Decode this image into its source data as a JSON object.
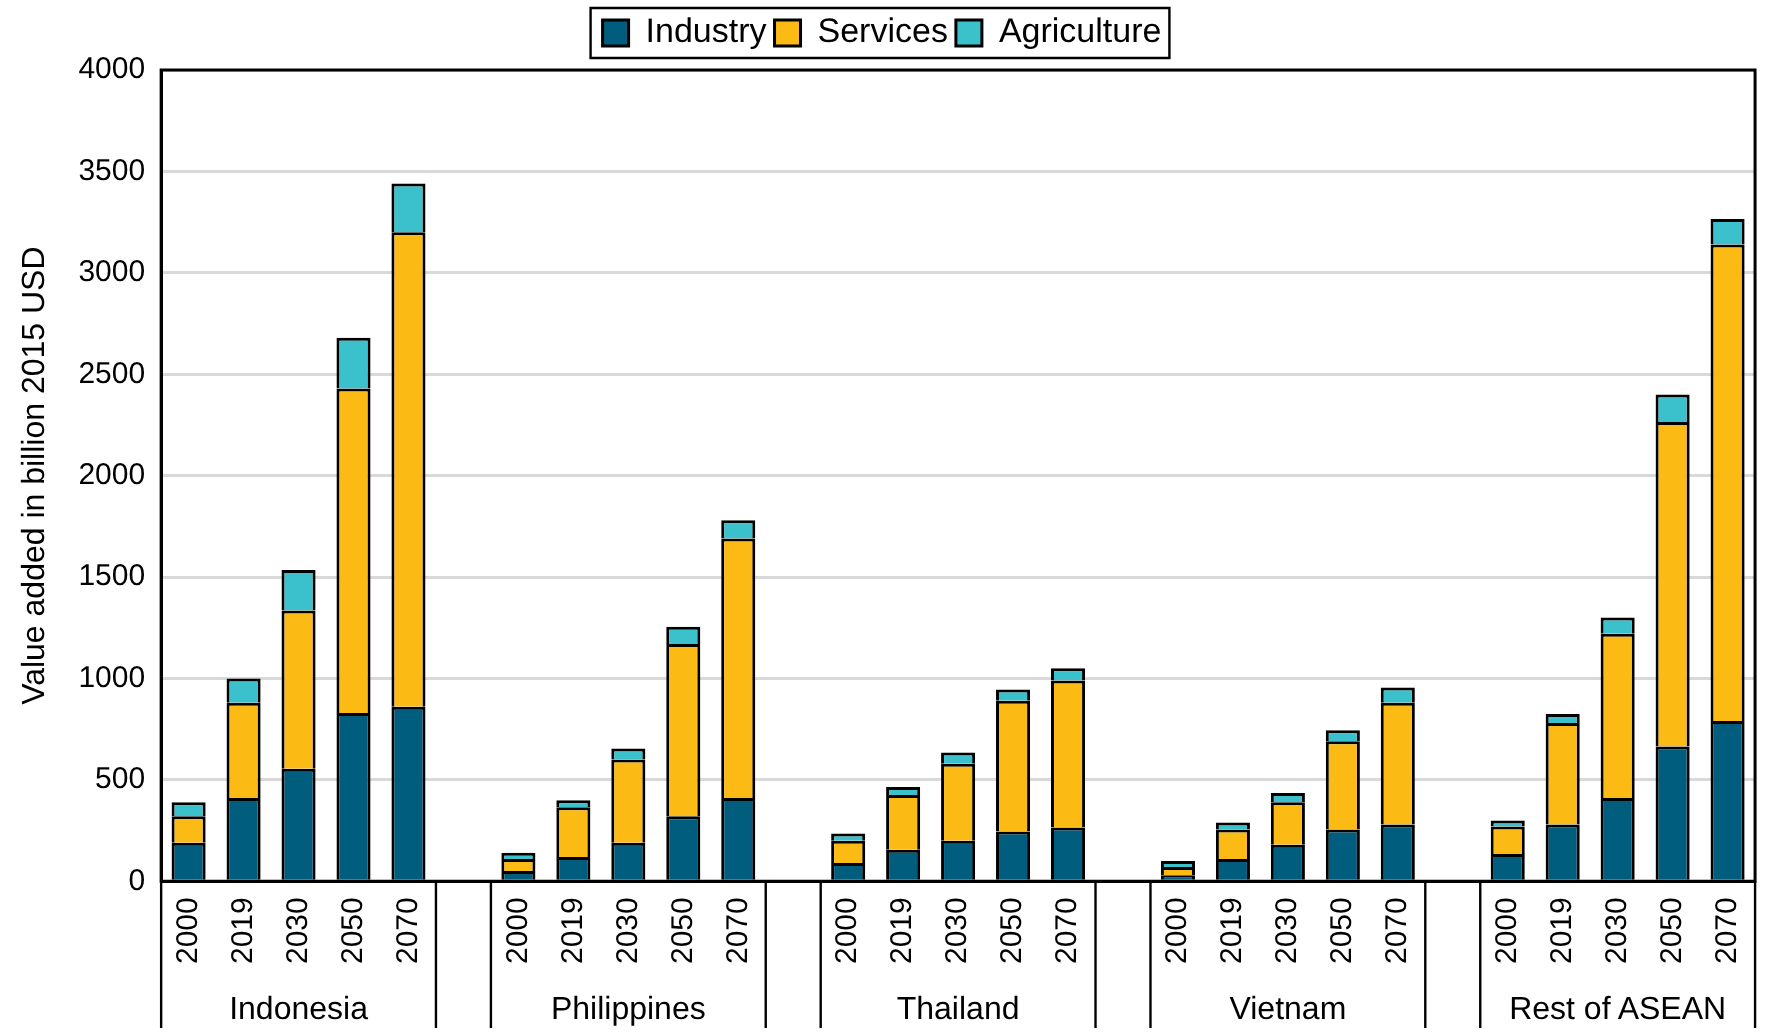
{
  "chart_data": {
    "type": "bar",
    "stacked": true,
    "ylabel": "Value added in billion 2015 USD",
    "categories": [
      "2000",
      "2019",
      "2030",
      "2050",
      "2070",
      null,
      "2000",
      "2019",
      "2030",
      "2050",
      "2070",
      null,
      "2000",
      "2019",
      "2030",
      "2050",
      "2070",
      null,
      "2000",
      "2019",
      "2030",
      "2050",
      "2070",
      null,
      "2000",
      "2019",
      "2030",
      "2050",
      "2070"
    ],
    "series": [
      {
        "name": "Industry",
        "color": "#015d7d",
        "values": [
          190,
          410,
          555,
          830,
          860,
          null,
          50,
          120,
          190,
          320,
          410,
          null,
          90,
          155,
          200,
          245,
          265,
          null,
          30,
          110,
          180,
          255,
          280,
          null,
          135,
          280,
          410,
          665,
          790
        ]
      },
      {
        "name": "Services",
        "color": "#fbba14",
        "values": [
          130,
          470,
          780,
          1600,
          2340,
          null,
          60,
          245,
          410,
          850,
          1280,
          null,
          110,
          270,
          380,
          645,
          725,
          null,
          40,
          145,
          210,
          435,
          600,
          null,
          135,
          500,
          810,
          1600,
          2350
        ]
      },
      {
        "name": "Agriculture",
        "color": "#3bc1cc",
        "values": [
          70,
          120,
          200,
          250,
          240,
          null,
          30,
          35,
          55,
          85,
          90,
          null,
          35,
          40,
          55,
          55,
          60,
          null,
          30,
          35,
          45,
          55,
          75,
          null,
          30,
          45,
          80,
          135,
          125
        ]
      }
    ],
    "annotations": [
      "Indonesia",
      "Philippines",
      "Thailand",
      "Vietnam",
      "Rest of ASEAN"
    ],
    "ylim": [
      0,
      4000
    ],
    "yticks": [
      0,
      500,
      1000,
      1500,
      2000,
      2500,
      3000,
      3500,
      4000
    ],
    "grid": "y",
    "legend": "top"
  }
}
